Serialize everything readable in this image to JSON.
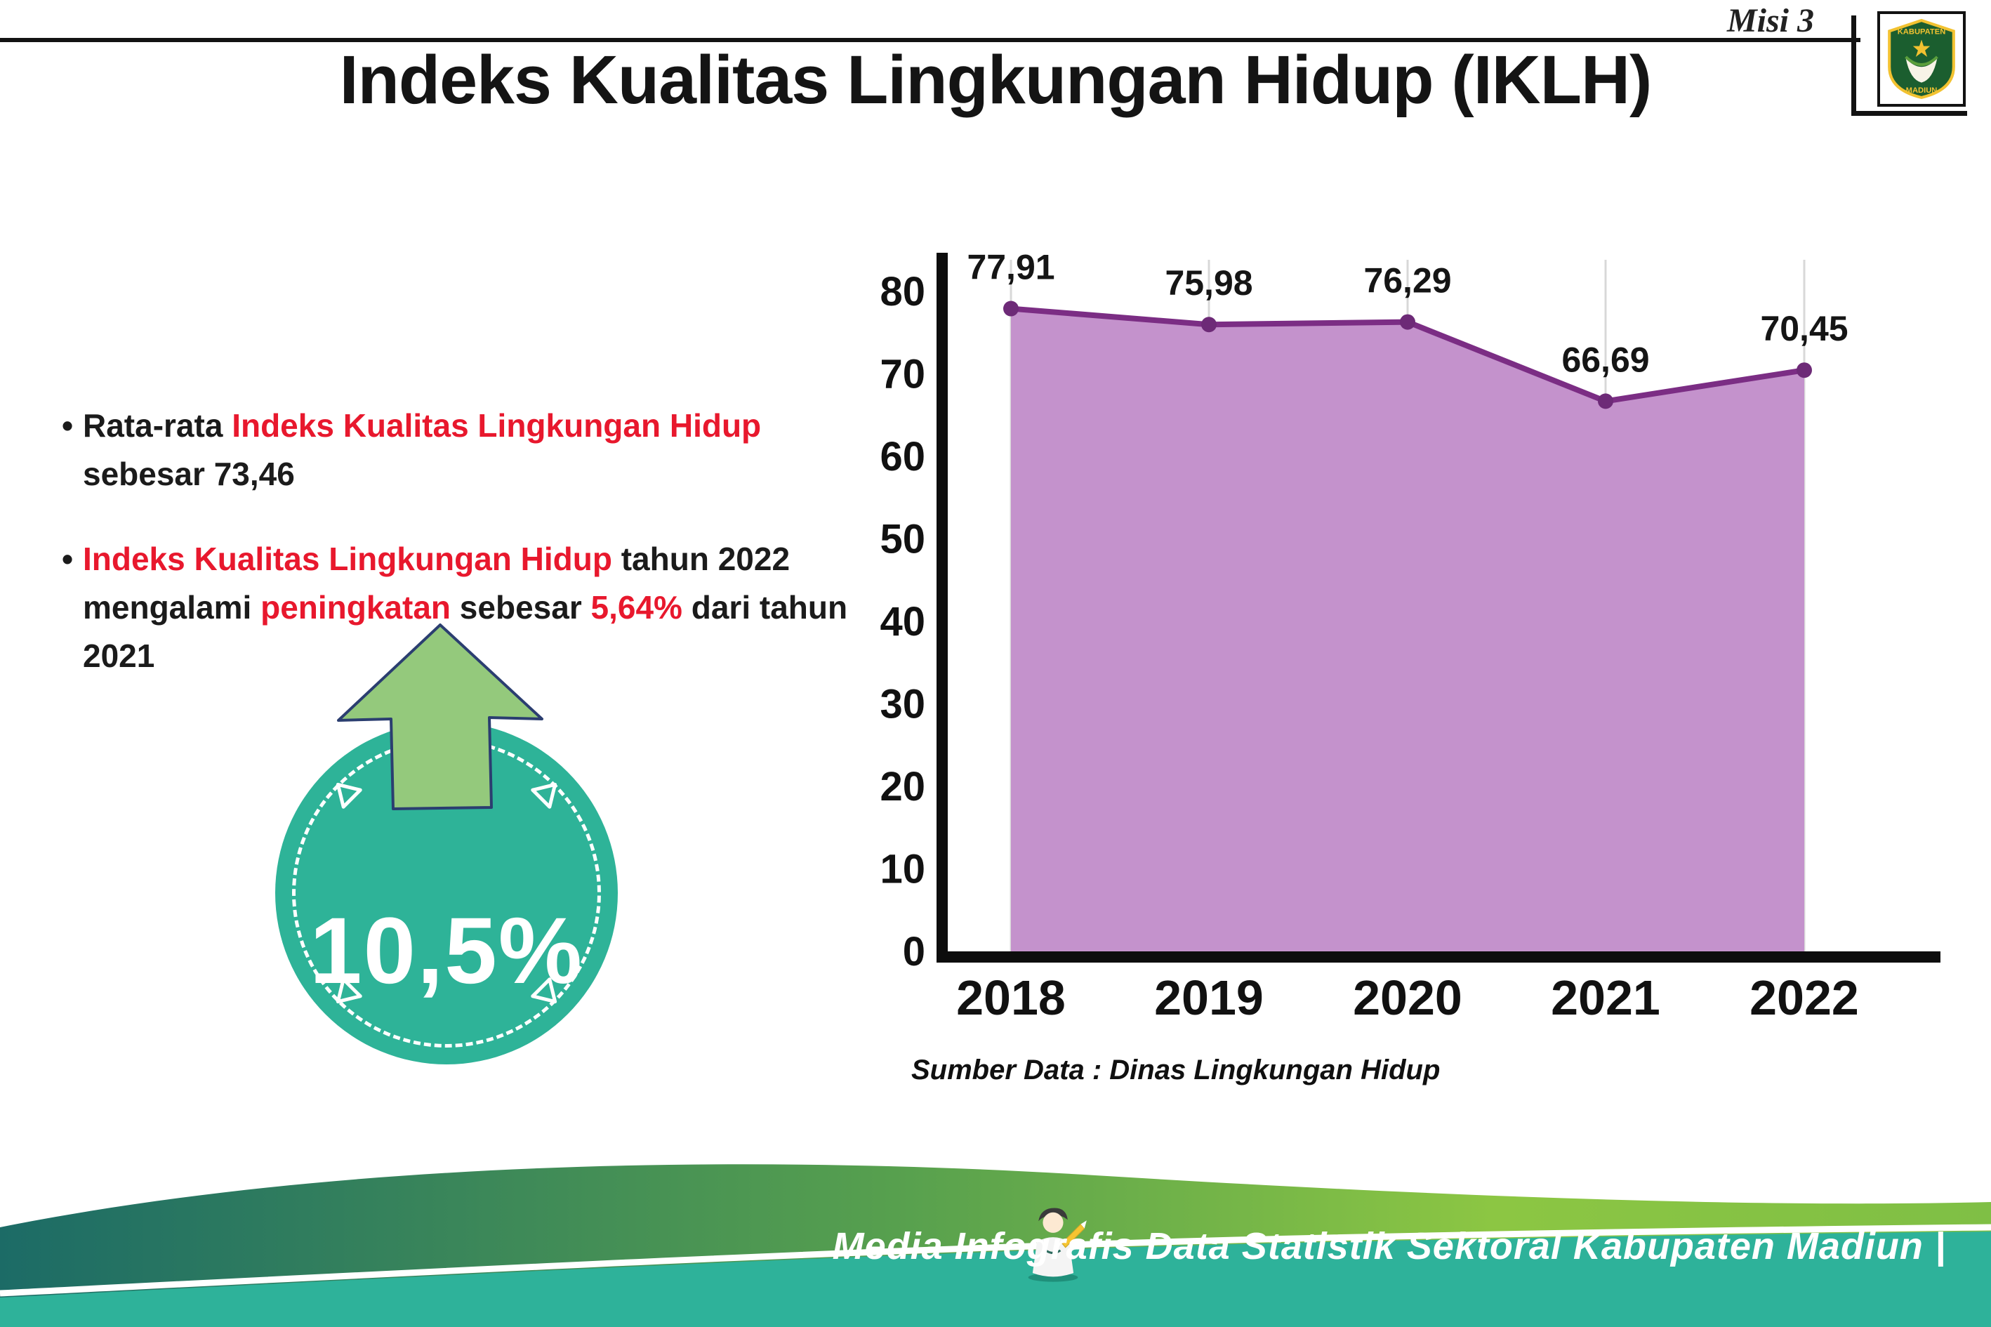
{
  "header": {
    "misi_label": "Misi 3",
    "title": "Indeks Kualitas Lingkungan Hidup (IKLH)"
  },
  "logo": {
    "top": "KABUPATEN",
    "bottom": "MADIUN"
  },
  "bullets": {
    "b1": [
      {
        "t": "Rata-rata "
      },
      {
        "t": "Indeks Kualitas Lingkungan Hidup"
      },
      {
        "t": " sebesar 73,46"
      }
    ],
    "b2": [
      {
        "t": "Indeks Kualitas Lingkungan Hidup"
      },
      {
        "t": " tahun 2022 mengalami "
      },
      {
        "t": "peningkatan"
      },
      {
        "t": " sebesar "
      },
      {
        "t": "5,64%"
      },
      {
        "t": " dari tahun 2021"
      }
    ]
  },
  "badge": {
    "value": "10,5%"
  },
  "colors": {
    "accent_red": "#e8182d",
    "badge_teal": "#2eb398",
    "arrow_green": "#94c97c",
    "footer_teal": "#2eb29a"
  },
  "chart_data": {
    "type": "area",
    "title": "Indeks Kualitas Lingkungan Hidup (IKLH)",
    "categories": [
      "2018",
      "2019",
      "2020",
      "2021",
      "2022"
    ],
    "values": [
      77.91,
      75.98,
      76.29,
      66.69,
      70.45
    ],
    "value_labels": [
      "77,91",
      "75,98",
      "76,29",
      "66,69",
      "70,45"
    ],
    "ylim": [
      0,
      80
    ],
    "yticks": [
      0,
      10,
      20,
      30,
      40,
      50,
      60,
      70,
      80
    ],
    "grid": "vertical",
    "legend": "none",
    "line_color": "#7b2d84",
    "fill_color": "#c492cc",
    "marker_color": "#6d2a77",
    "axis_color": "#0d0d0d",
    "source": "Sumber Data : Dinas Lingkungan Hidup"
  },
  "footer": {
    "credit": "Media Infografis Data Statistik Sektoral Kabupaten Madiun |"
  }
}
